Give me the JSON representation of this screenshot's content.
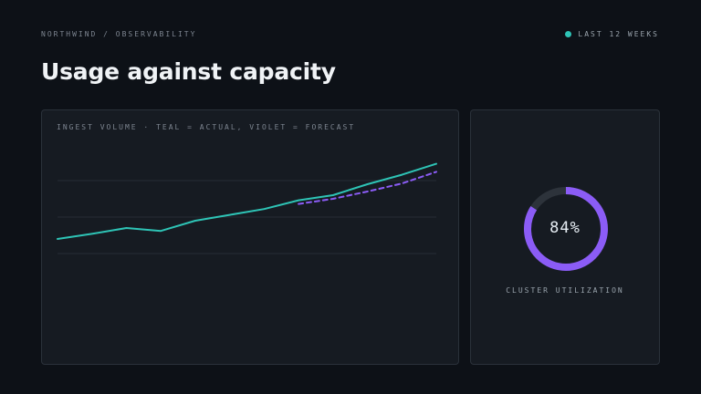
{
  "header": {
    "breadcrumb": "NORTHWIND / OBSERVABILITY",
    "range_label": "LAST 12 WEEKS",
    "range_dot_color": "#2ec4b6",
    "title": "Usage against capacity"
  },
  "ingest_card": {
    "caption": "INGEST VOLUME · TEAL = ACTUAL, VIOLET = FORECAST"
  },
  "chart_data": {
    "type": "line",
    "title": "INGEST VOLUME · TEAL = ACTUAL, VIOLET = FORECAST",
    "x": [
      1,
      2,
      3,
      4,
      5,
      6,
      7,
      8,
      9,
      10,
      11,
      12
    ],
    "ylim": [
      0,
      100
    ],
    "grid": true,
    "series": [
      {
        "name": "ACTUAL",
        "color": "#2ec4b6",
        "style": "solid",
        "x": [
          1,
          2,
          3,
          4,
          5,
          6,
          7,
          8,
          9,
          10,
          11,
          12
        ],
        "values": [
          35,
          38.5,
          42.5,
          40.5,
          47.5,
          51.5,
          55.5,
          61.5,
          65,
          72.5,
          79,
          86.5
        ]
      },
      {
        "name": "FORECAST",
        "color": "#8b5cf6",
        "style": "dashed",
        "x": [
          8,
          9,
          10,
          11,
          12
        ],
        "values": [
          59,
          62.5,
          67.5,
          73,
          81
        ]
      }
    ]
  },
  "utilization": {
    "value": 0.84,
    "value_text": "84%",
    "label": "CLUSTER UTILIZATION",
    "color": "#8b5cf6",
    "track_color": "#2d333b"
  }
}
